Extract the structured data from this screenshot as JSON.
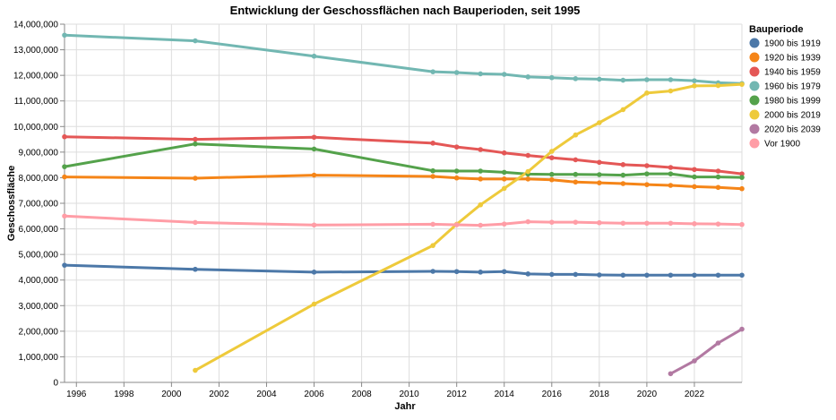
{
  "chart_data": {
    "type": "line",
    "title": "Entwicklung der Geschossflächen nach Bauperioden, seit 1995",
    "xlabel": "Jahr",
    "ylabel": "Geschossfläche",
    "xlim": [
      1995.5,
      2024
    ],
    "ylim": [
      0,
      14000000
    ],
    "x_ticks": [
      1996,
      1998,
      2000,
      2002,
      2004,
      2006,
      2008,
      2010,
      2012,
      2014,
      2016,
      2018,
      2020,
      2022
    ],
    "x_tick_labels": [
      "1996",
      "1998",
      "2000",
      "2002",
      "2004",
      "2006",
      "2008",
      "2010",
      "2012",
      "2014",
      "2016",
      "2018",
      "2020",
      "2022"
    ],
    "y_ticks": [
      0,
      1000000,
      2000000,
      3000000,
      4000000,
      5000000,
      6000000,
      7000000,
      8000000,
      9000000,
      10000000,
      11000000,
      12000000,
      13000000,
      14000000
    ],
    "y_tick_labels": [
      "0",
      "1,000,000",
      "2,000,000",
      "3,000,000",
      "4,000,000",
      "5,000,000",
      "6,000,000",
      "7,000,000",
      "8,000,000",
      "9,000,000",
      "10,000,000",
      "11,000,000",
      "12,000,000",
      "13,000,000",
      "14,000,000"
    ],
    "grid": true,
    "legend": {
      "title": "Bauperiode",
      "placement": "right"
    },
    "series": [
      {
        "name": "1900 bis 1919",
        "color": "#4c78a8",
        "x": [
          1995.5,
          2001,
          2006,
          2011,
          2012,
          2013,
          2014,
          2015,
          2016,
          2017,
          2018,
          2019,
          2020,
          2021,
          2022,
          2023,
          2024
        ],
        "y": [
          4580000,
          4420000,
          4310000,
          4340000,
          4330000,
          4310000,
          4330000,
          4240000,
          4220000,
          4220000,
          4200000,
          4190000,
          4190000,
          4190000,
          4190000,
          4190000,
          4190000
        ]
      },
      {
        "name": "1920 bis 1939",
        "color": "#f58518",
        "x": [
          1995.5,
          2001,
          2006,
          2011,
          2012,
          2013,
          2014,
          2015,
          2016,
          2017,
          2018,
          2019,
          2020,
          2021,
          2022,
          2023,
          2024
        ],
        "y": [
          8030000,
          7980000,
          8100000,
          8050000,
          7990000,
          7950000,
          7950000,
          7950000,
          7920000,
          7830000,
          7800000,
          7770000,
          7730000,
          7700000,
          7650000,
          7620000,
          7570000
        ]
      },
      {
        "name": "1940 bis 1959",
        "color": "#e45756",
        "x": [
          1995.5,
          2001,
          2006,
          2011,
          2012,
          2013,
          2014,
          2015,
          2016,
          2017,
          2018,
          2019,
          2020,
          2021,
          2022,
          2023,
          2024
        ],
        "y": [
          9600000,
          9500000,
          9580000,
          9350000,
          9200000,
          9100000,
          8970000,
          8870000,
          8780000,
          8700000,
          8600000,
          8510000,
          8470000,
          8400000,
          8320000,
          8260000,
          8150000
        ]
      },
      {
        "name": "1960 bis 1979",
        "color": "#72b7b2",
        "x": [
          1995.5,
          2001,
          2006,
          2011,
          2012,
          2013,
          2014,
          2015,
          2016,
          2017,
          2018,
          2019,
          2020,
          2021,
          2022,
          2023,
          2024
        ],
        "y": [
          13570000,
          13350000,
          12750000,
          12140000,
          12110000,
          12060000,
          12040000,
          11940000,
          11910000,
          11870000,
          11850000,
          11810000,
          11830000,
          11830000,
          11790000,
          11710000,
          11680000
        ]
      },
      {
        "name": "1980 bis 1999",
        "color": "#54a24b",
        "x": [
          1995.5,
          2001,
          2006,
          2011,
          2012,
          2013,
          2014,
          2015,
          2016,
          2017,
          2018,
          2019,
          2020,
          2021,
          2022,
          2023,
          2024
        ],
        "y": [
          8430000,
          9320000,
          9120000,
          8270000,
          8260000,
          8260000,
          8210000,
          8140000,
          8130000,
          8130000,
          8120000,
          8100000,
          8150000,
          8150000,
          8030000,
          8030000,
          8010000
        ]
      },
      {
        "name": "2000 bis 2019",
        "color": "#eeca3b",
        "x": [
          2001,
          2006,
          2011,
          2012,
          2013,
          2014,
          2015,
          2016,
          2017,
          2018,
          2019,
          2020,
          2021,
          2022,
          2023,
          2024
        ],
        "y": [
          470000,
          3060000,
          5350000,
          6180000,
          6940000,
          7580000,
          8240000,
          9030000,
          9670000,
          10150000,
          10660000,
          11310000,
          11390000,
          11590000,
          11600000,
          11650000
        ]
      },
      {
        "name": "2020 bis 2039",
        "color": "#b279a2",
        "x": [
          2021,
          2022,
          2023,
          2024
        ],
        "y": [
          340000,
          840000,
          1540000,
          2080000
        ]
      },
      {
        "name": "Vor 1900",
        "color": "#ff9da6",
        "x": [
          1995.5,
          2001,
          2006,
          2011,
          2012,
          2013,
          2014,
          2015,
          2016,
          2017,
          2018,
          2019,
          2020,
          2021,
          2022,
          2023,
          2024
        ],
        "y": [
          6500000,
          6250000,
          6150000,
          6180000,
          6160000,
          6140000,
          6190000,
          6280000,
          6260000,
          6260000,
          6240000,
          6220000,
          6220000,
          6220000,
          6200000,
          6190000,
          6170000
        ]
      }
    ]
  }
}
